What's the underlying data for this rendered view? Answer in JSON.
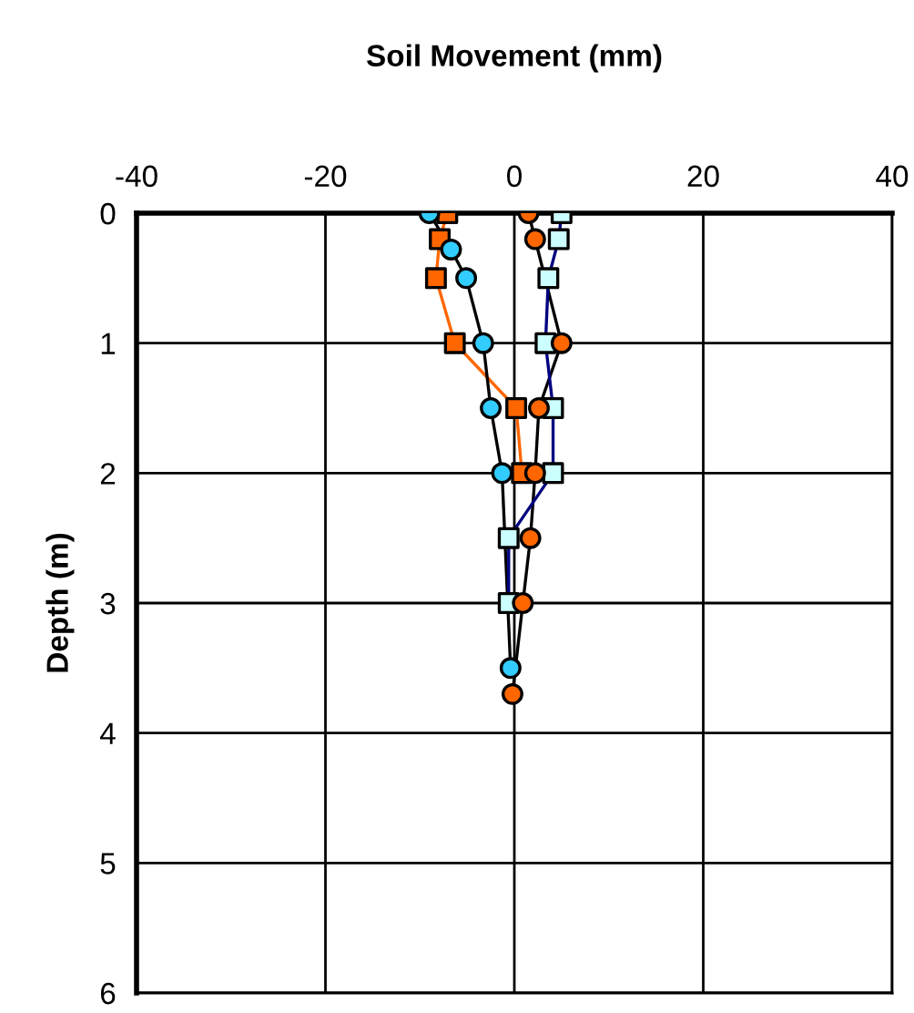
{
  "chart_data": {
    "type": "line",
    "title": "Soil Movement (mm)",
    "ylabel": "Depth (m)",
    "xlim": [
      -40,
      40
    ],
    "xticks": [
      -40,
      -20,
      0,
      20,
      40
    ],
    "ylim": [
      6,
      0
    ],
    "yticks": [
      0,
      1,
      2,
      3,
      4,
      5,
      6
    ],
    "grid": true,
    "series": [
      {
        "color": "#ff6600",
        "colors": [
          "#ff6600",
          "#ff6600",
          "#ff6600",
          "#ff6600",
          "#ff6600",
          "#ff6600"
        ],
        "marker": "square",
        "x": [
          -7.1,
          -7.9,
          -8.3,
          -6.3,
          0.2,
          0.8
        ],
        "values": [
          0,
          0.2,
          0.5,
          1,
          1.5,
          2
        ]
      },
      {
        "color": "#000000",
        "colors": [
          "#33ccff",
          "#33ccff",
          "#33ccff",
          "#33ccff",
          "#33ccff",
          "#33ccff",
          "#33ccff"
        ],
        "marker": "circle",
        "x": [
          -9,
          -6.7,
          -5.1,
          -3.3,
          -2.5,
          -1.3,
          -0.4
        ],
        "values": [
          0,
          0.28,
          0.5,
          1,
          1.5,
          2,
          3.5
        ]
      },
      {
        "color": "#000000",
        "colors": [
          "#ff6600",
          "#ff6600",
          "#ff6600",
          "#ff6600",
          "#ff6600",
          "#ff6600",
          "#ff6600",
          "#ff6600"
        ],
        "marker": "circle",
        "x": [
          1.5,
          2.2,
          5.0,
          2.6,
          2.2,
          1.7,
          0.9,
          -0.2
        ],
        "values": [
          0,
          0.2,
          1,
          1.5,
          2,
          2.5,
          3,
          3.7
        ]
      },
      {
        "color": "#000080",
        "colors": [
          "#ccffff",
          "#ccffff",
          "#ccffff",
          "#ccffff",
          "#ccffff",
          "#ccffff",
          "#ccffff",
          "#ccffff"
        ],
        "marker": "square",
        "x": [
          5,
          4.7,
          3.6,
          3.3,
          4.1,
          4.1,
          -0.6,
          -0.6
        ],
        "values": [
          0,
          0.2,
          0.5,
          1,
          1.5,
          2,
          2.5,
          3
        ]
      }
    ]
  }
}
